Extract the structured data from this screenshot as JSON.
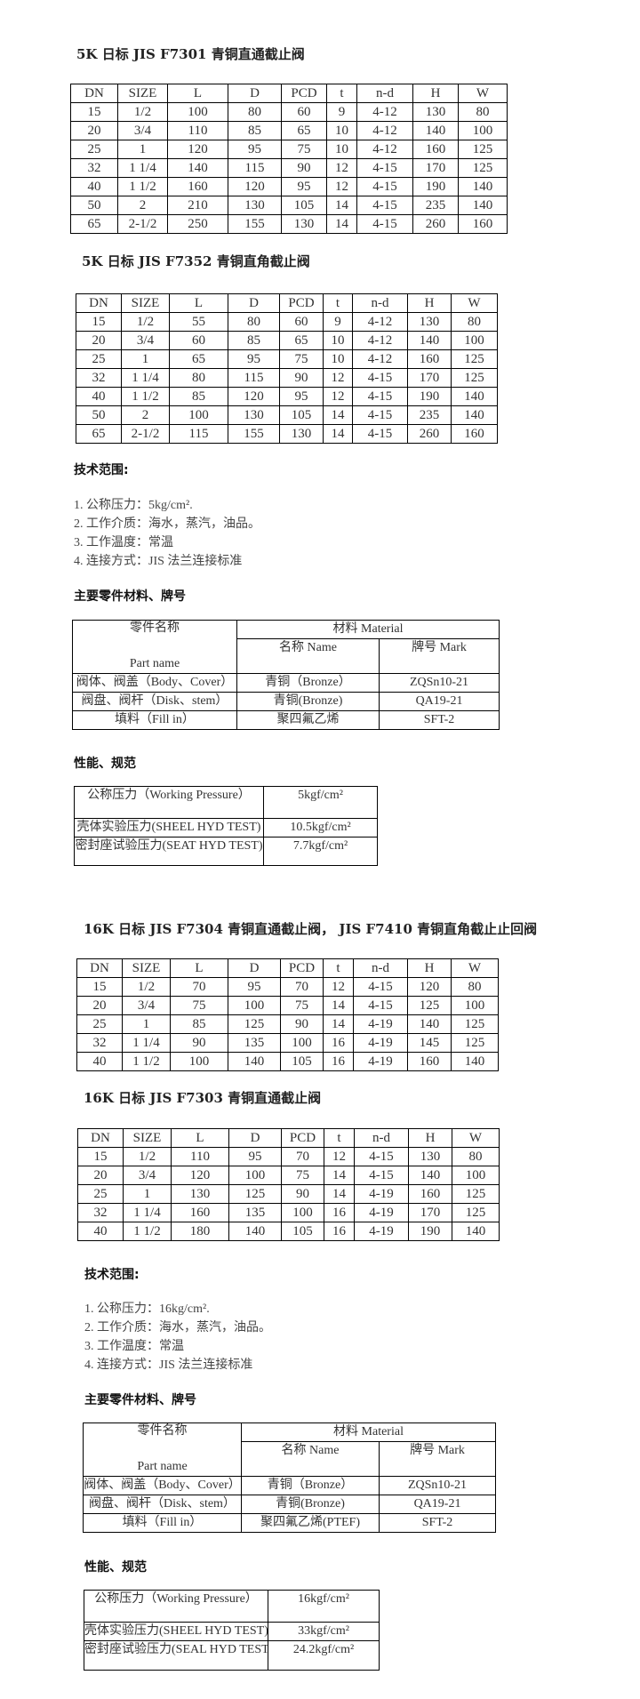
{
  "sections": [
    {
      "title": "5K 日标 JIS F7301 青铜直通截止阀",
      "headers": [
        "DN",
        "SIZE",
        "L",
        "D",
        "PCD",
        "t",
        "n-d",
        "H",
        "W"
      ],
      "rows": [
        [
          "15",
          "1/2",
          "100",
          "80",
          "60",
          "9",
          "4-12",
          "130",
          "80"
        ],
        [
          "20",
          "3/4",
          "110",
          "85",
          "65",
          "10",
          "4-12",
          "140",
          "100"
        ],
        [
          "25",
          "1",
          "120",
          "95",
          "75",
          "10",
          "4-12",
          "160",
          "125"
        ],
        [
          "32",
          "1 1/4",
          "140",
          "115",
          "90",
          "12",
          "4-15",
          "170",
          "125"
        ],
        [
          "40",
          "1 1/2",
          "160",
          "120",
          "95",
          "12",
          "4-15",
          "190",
          "140"
        ],
        [
          "50",
          "2",
          "210",
          "130",
          "105",
          "14",
          "4-15",
          "235",
          "140"
        ],
        [
          "65",
          "2-1/2",
          "250",
          "155",
          "130",
          "14",
          "4-15",
          "260",
          "160"
        ]
      ]
    },
    {
      "title": "5K 日标 JIS F7352 青铜直角截止阀",
      "headers": [
        "DN",
        "SIZE",
        "L",
        "D",
        "PCD",
        "t",
        "n-d",
        "H",
        "W"
      ],
      "rows": [
        [
          "15",
          "1/2",
          "55",
          "80",
          "60",
          "9",
          "4-12",
          "130",
          "80"
        ],
        [
          "20",
          "3/4",
          "60",
          "85",
          "65",
          "10",
          "4-12",
          "140",
          "100"
        ],
        [
          "25",
          "1",
          "65",
          "95",
          "75",
          "10",
          "4-12",
          "160",
          "125"
        ],
        [
          "32",
          "1 1/4",
          "80",
          "115",
          "90",
          "12",
          "4-15",
          "170",
          "125"
        ],
        [
          "40",
          "1 1/2",
          "85",
          "120",
          "95",
          "12",
          "4-15",
          "190",
          "140"
        ],
        [
          "50",
          "2",
          "100",
          "130",
          "105",
          "14",
          "4-15",
          "235",
          "140"
        ],
        [
          "65",
          "2-1/2",
          "115",
          "155",
          "130",
          "14",
          "4-15",
          "260",
          "160"
        ]
      ]
    },
    {
      "title": "16K 日标 JIS F7304 青铜直通截止阀， JIS F7410 青铜直角截止止回阀",
      "headers": [
        "DN",
        "SIZE",
        "L",
        "D",
        "PCD",
        "t",
        "n-d",
        "H",
        "W"
      ],
      "rows": [
        [
          "15",
          "1/2",
          "70",
          "95",
          "70",
          "12",
          "4-15",
          "120",
          "80"
        ],
        [
          "20",
          "3/4",
          "75",
          "100",
          "75",
          "14",
          "4-15",
          "125",
          "100"
        ],
        [
          "25",
          "1",
          "85",
          "125",
          "90",
          "14",
          "4-19",
          "140",
          "125"
        ],
        [
          "32",
          "1 1/4",
          "90",
          "135",
          "100",
          "16",
          "4-19",
          "145",
          "125"
        ],
        [
          "40",
          "1 1/2",
          "100",
          "140",
          "105",
          "16",
          "4-19",
          "160",
          "140"
        ]
      ]
    },
    {
      "title": "16K 日标 JIS F7303 青铜直通截止阀",
      "headers": [
        "DN",
        "SIZE",
        "L",
        "D",
        "PCD",
        "t",
        "n-d",
        "H",
        "W"
      ],
      "rows": [
        [
          "15",
          "1/2",
          "110",
          "95",
          "70",
          "12",
          "4-15",
          "130",
          "80"
        ],
        [
          "20",
          "3/4",
          "120",
          "100",
          "75",
          "14",
          "4-15",
          "140",
          "100"
        ],
        [
          "25",
          "1",
          "130",
          "125",
          "90",
          "14",
          "4-19",
          "160",
          "125"
        ],
        [
          "32",
          "1 1/4",
          "160",
          "135",
          "100",
          "16",
          "4-19",
          "170",
          "125"
        ],
        [
          "40",
          "1 1/2",
          "180",
          "140",
          "105",
          "16",
          "4-19",
          "190",
          "140"
        ]
      ]
    }
  ],
  "specs": [
    {
      "tech_heading": "技术范围:",
      "tech_items": [
        "1.  公称压力：5kg/cm².",
        "2.  工作介质：海水，蒸汽，油品。",
        "3.  工作温度：常温",
        "4.  连接方式：JIS 法兰连接标准"
      ],
      "parts_heading": "主要零件材料、牌号",
      "parts": {
        "part_cn": "零件名称",
        "part_en": "Part name",
        "material": "材料   Material",
        "name": "名称 Name",
        "mark": "牌号 Mark",
        "rows": [
          [
            "阀体、阀盖（Body、Cover）",
            "青铜（Bronze）",
            "ZQSn10-21"
          ],
          [
            "阀盘、阀杆（Disk、stem）",
            "青铜(Bronze)",
            "QA19-21"
          ],
          [
            "填料（Fill in）",
            "聚四氟乙烯",
            "SFT-2"
          ]
        ]
      },
      "perf_heading": "性能、规范",
      "perf": [
        [
          "公称压力（Working Pressure）",
          "5kgf/cm²"
        ],
        [
          "壳体实验压力(SHEEL HYD TEST)",
          "10.5kgf/cm²"
        ],
        [
          "密封座试验压力(SEAT HYD TEST)",
          "7.7kgf/cm²"
        ]
      ]
    },
    {
      "tech_heading": "技术范围:",
      "tech_items": [
        "1.  公称压力：16kg/cm².",
        "2.  工作介质：海水，蒸汽，油品。",
        "3.  工作温度：常温",
        "4.  连接方式：JIS 法兰连接标准"
      ],
      "parts_heading": "主要零件材料、牌号",
      "parts": {
        "part_cn": "零件名称",
        "part_en": "Part name",
        "material": "材料   Material",
        "name": "名称 Name",
        "mark": "牌号 Mark",
        "rows": [
          [
            "阀体、阀盖（Body、Cover）",
            "青铜（Bronze）",
            "ZQSn10-21"
          ],
          [
            "阀盘、阀杆（Disk、stem）",
            "青铜(Bronze)",
            "QA19-21"
          ],
          [
            "填料（Fill in）",
            "聚四氟乙烯(PTEF)",
            "SFT-2"
          ]
        ]
      },
      "perf_heading": "性能、规范",
      "perf": [
        [
          "公称压力（Working Pressure）",
          "16kgf/cm²"
        ],
        [
          "壳体实验压力(SHEEL HYD TEST)",
          "33kgf/cm²"
        ],
        [
          "密封座试验压力(SEAL HYD TEST)",
          "24.2kgf/cm²"
        ]
      ]
    }
  ]
}
